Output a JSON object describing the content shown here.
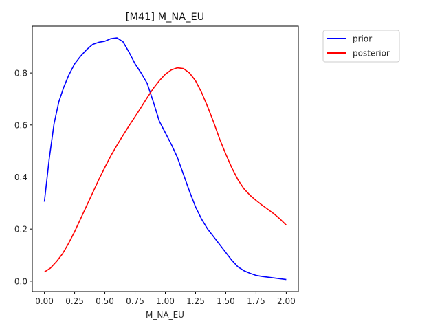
{
  "chart_data": {
    "type": "line",
    "title": "[M41] M_NA_EU",
    "xlabel": "M_NA_EU",
    "ylabel": "",
    "xlim": [
      -0.1,
      2.1
    ],
    "ylim": [
      -0.04,
      0.98
    ],
    "xticks": [
      "0.00",
      "0.25",
      "0.50",
      "0.75",
      "1.00",
      "1.25",
      "1.50",
      "1.75",
      "2.00"
    ],
    "yticks": [
      "0.0",
      "0.2",
      "0.4",
      "0.6",
      "0.8"
    ],
    "grid": false,
    "legend_position": "outside-top-right",
    "series": [
      {
        "name": "prior",
        "color": "#0000ff",
        "x": [
          0.0,
          0.04,
          0.08,
          0.12,
          0.16,
          0.2,
          0.25,
          0.3,
          0.35,
          0.4,
          0.45,
          0.5,
          0.55,
          0.6,
          0.65,
          0.7,
          0.75,
          0.8,
          0.85,
          0.9,
          0.95,
          1.0,
          1.05,
          1.1,
          1.15,
          1.2,
          1.25,
          1.3,
          1.35,
          1.4,
          1.45,
          1.5,
          1.55,
          1.6,
          1.65,
          1.7,
          1.75,
          1.8,
          1.85,
          1.9,
          1.95,
          2.0
        ],
        "values": [
          0.305,
          0.47,
          0.605,
          0.69,
          0.745,
          0.79,
          0.835,
          0.865,
          0.89,
          0.91,
          0.918,
          0.922,
          0.932,
          0.935,
          0.92,
          0.88,
          0.835,
          0.8,
          0.76,
          0.69,
          0.615,
          0.57,
          0.525,
          0.475,
          0.41,
          0.345,
          0.285,
          0.238,
          0.2,
          0.17,
          0.14,
          0.11,
          0.08,
          0.055,
          0.04,
          0.03,
          0.022,
          0.018,
          0.015,
          0.012,
          0.009,
          0.006
        ]
      },
      {
        "name": "posterior",
        "color": "#ff0000",
        "x": [
          0.0,
          0.05,
          0.1,
          0.15,
          0.2,
          0.25,
          0.3,
          0.35,
          0.4,
          0.45,
          0.5,
          0.55,
          0.6,
          0.65,
          0.7,
          0.75,
          0.8,
          0.85,
          0.9,
          0.95,
          1.0,
          1.05,
          1.1,
          1.15,
          1.2,
          1.25,
          1.3,
          1.35,
          1.4,
          1.45,
          1.5,
          1.55,
          1.6,
          1.65,
          1.7,
          1.75,
          1.8,
          1.85,
          1.9,
          1.95,
          2.0
        ],
        "values": [
          0.035,
          0.05,
          0.075,
          0.105,
          0.145,
          0.19,
          0.24,
          0.29,
          0.34,
          0.39,
          0.437,
          0.482,
          0.522,
          0.56,
          0.597,
          0.632,
          0.668,
          0.705,
          0.74,
          0.77,
          0.795,
          0.812,
          0.82,
          0.817,
          0.8,
          0.77,
          0.725,
          0.67,
          0.61,
          0.545,
          0.488,
          0.435,
          0.39,
          0.355,
          0.33,
          0.31,
          0.292,
          0.275,
          0.258,
          0.238,
          0.215
        ]
      }
    ]
  }
}
